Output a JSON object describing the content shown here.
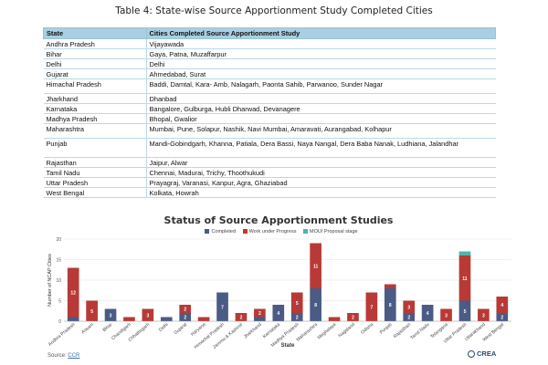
{
  "table": {
    "title": "Table 4: State-wise Source Apportionment Study Completed Cities",
    "headers": [
      "State",
      "Cities Completed Source Apportionment Study"
    ],
    "rows": [
      [
        "Andhra Pradesh",
        "Vijayawada"
      ],
      [
        "Bihar",
        "Gaya, Patna, Muzaffarpur"
      ],
      [
        "Delhi",
        "Delhi"
      ],
      [
        "Gujarat",
        "Ahmedabad, Surat"
      ],
      [
        "Himachal Pradesh",
        "Baddi, Damtal, Kara- Amb, Nalagarh, Paonta Sahib, Parwanoo, Sunder Nagar"
      ],
      [
        "Jharkhand",
        "Dhanbad"
      ],
      [
        "Karnataka",
        "Bangalore, Gulburga, Hubli Dharwad, Devanagere"
      ],
      [
        "Madhya Pradesh",
        "Bhopal, Gwalior"
      ],
      [
        "Maharashtra",
        "Mumbai, Pune, Solapur, Nashik, Navi Mumbai, Amaravati, Aurangabad, Kolhapur"
      ],
      [
        "Punjab",
        "Mandi-Gobindgarh, Khanna, Patiala, Dera Bassi, Naya Nangal, Dera Baba Nanak, Ludhiana, Jalandhar"
      ],
      [
        "Rajasthan",
        "Jaipur, Alwar"
      ],
      [
        "Tamil Nadu",
        "Chennai, Madurai, Trichy, Thoothukudi"
      ],
      [
        "Uttar Pradesh",
        "Prayagraj, Varanasi, Kanpur, Agra, Ghaziabad"
      ],
      [
        "West Bengal",
        "Kolkata, Howrah"
      ]
    ]
  },
  "chart_data": {
    "type": "bar",
    "stacked": true,
    "title": "Status of Source Apportionment Studies",
    "xlabel": "State",
    "ylabel": "Number of NCAP Cities",
    "ylim": [
      0,
      20
    ],
    "yticks": [
      0,
      5,
      10,
      15,
      20
    ],
    "grid": true,
    "legend_position": "top",
    "categories": [
      "Andhra Pradesh",
      "Assam",
      "Bihar",
      "Chandigarh",
      "Chhattisgarh",
      "Delhi",
      "Gujarat",
      "Haryana",
      "Himachal Pradesh",
      "Jammu & Kashmir",
      "Jharkhand",
      "Karnataka",
      "Madhya Pradesh",
      "Maharashtra",
      "Meghalaya",
      "Nagaland",
      "Odisha",
      "Punjab",
      "Rajasthan",
      "Tamil Nadu",
      "Telangana",
      "Uttar Pradesh",
      "Uttarakhand",
      "West Bengal"
    ],
    "series": [
      {
        "name": "Completed",
        "color": "#4a5b85",
        "values": [
          1,
          0,
          3,
          0,
          0,
          1,
          2,
          0,
          7,
          0,
          1,
          4,
          2,
          8,
          0,
          0,
          0,
          8,
          2,
          4,
          0,
          5,
          0,
          2
        ]
      },
      {
        "name": "Work under Progress",
        "color": "#b73a36",
        "values": [
          12,
          5,
          0,
          1,
          3,
          0,
          2,
          1,
          0,
          2,
          2,
          0,
          5,
          11,
          1,
          2,
          7,
          1,
          3,
          0,
          3,
          11,
          3,
          4
        ]
      },
      {
        "name": "MOU/ Proposal stage",
        "color": "#4fb3b0",
        "values": [
          0,
          0,
          0,
          0,
          0,
          0,
          0,
          0,
          0,
          0,
          0,
          0,
          0,
          0,
          0,
          0,
          0,
          0,
          0,
          0,
          0,
          1,
          0,
          0
        ]
      }
    ],
    "segment_labels": [
      [
        1,
        null,
        3,
        null,
        null,
        1,
        2,
        null,
        7,
        null,
        1,
        4,
        2,
        8,
        null,
        null,
        null,
        8,
        2,
        4,
        null,
        5,
        null,
        2
      ],
      [
        12,
        5,
        null,
        1,
        3,
        null,
        2,
        1,
        null,
        2,
        2,
        null,
        5,
        11,
        1,
        2,
        7,
        1,
        3,
        null,
        3,
        11,
        3,
        4
      ],
      [
        null,
        null,
        null,
        null,
        null,
        null,
        null,
        null,
        null,
        null,
        null,
        null,
        null,
        null,
        null,
        null,
        null,
        null,
        null,
        null,
        null,
        null,
        null,
        null
      ]
    ]
  },
  "source": {
    "prefix": "Source:",
    "link": "CCR"
  },
  "brand": {
    "name": "CREA"
  }
}
